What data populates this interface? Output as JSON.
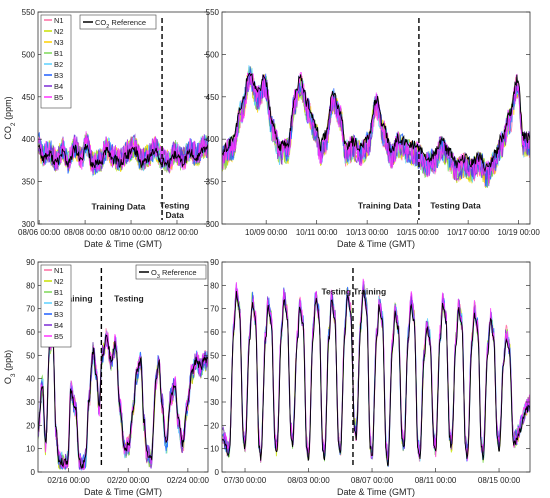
{
  "figure": {
    "panels": 4,
    "colors": {
      "N1": "#ff6aa0",
      "N2": "#c8e000",
      "N3": "#ffd000",
      "B1": "#7ed957",
      "B2": "#5ad0ff",
      "B3": "#1f5fff",
      "B4": "#7a2bd6",
      "B5": "#ff33ff",
      "ref": "#000000"
    }
  },
  "chart_data": [
    {
      "id": "co2-aug",
      "type": "line",
      "ylabel": "CO2 (ppm)",
      "xlabel": "Date & Time (GMT)",
      "ylim": [
        300,
        550
      ],
      "yticks": [
        "300",
        "350",
        "400",
        "450",
        "500",
        "550"
      ],
      "xlim": [
        0,
        7.4
      ],
      "xticks": [
        {
          "x": 0.05,
          "label": "08/06 00:00"
        },
        {
          "x": 2.05,
          "label": "08/08 00:00"
        },
        {
          "x": 4.05,
          "label": "08/10 00:00"
        },
        {
          "x": 6.05,
          "label": "08/12 00:00"
        }
      ],
      "split_x": 5.4,
      "annotations": [
        {
          "text": "Training Data",
          "x": 3.5,
          "y": 317
        },
        {
          "text": "Testing",
          "x": 5.95,
          "y": 318
        },
        {
          "text": "Data",
          "x": 5.95,
          "y": 307
        }
      ],
      "legend": {
        "position": "top-left",
        "entries": [
          "N1",
          "N2",
          "N3",
          "B1",
          "B2",
          "B3",
          "B4",
          "B5"
        ],
        "ref_label": "CO2 Reference"
      },
      "reference": [
        [
          0.0,
          395
        ],
        [
          0.2,
          378
        ],
        [
          0.5,
          382
        ],
        [
          0.8,
          372
        ],
        [
          1.1,
          385
        ],
        [
          1.3,
          370
        ],
        [
          1.6,
          388
        ],
        [
          1.9,
          374
        ],
        [
          2.1,
          392
        ],
        [
          2.4,
          368
        ],
        [
          2.7,
          372
        ],
        [
          3.0,
          386
        ],
        [
          3.3,
          376
        ],
        [
          3.6,
          372
        ],
        [
          3.9,
          382
        ],
        [
          4.2,
          388
        ],
        [
          4.5,
          372
        ],
        [
          4.8,
          378
        ],
        [
          5.1,
          386
        ],
        [
          5.4,
          374
        ],
        [
          5.7,
          370
        ],
        [
          6.0,
          382
        ],
        [
          6.3,
          372
        ],
        [
          6.6,
          384
        ],
        [
          6.9,
          378
        ],
        [
          7.2,
          388
        ]
      ],
      "spread": 22,
      "series_names": [
        "N1",
        "N2",
        "N3",
        "B1",
        "B2",
        "B3",
        "B4",
        "B5"
      ]
    },
    {
      "id": "co2-oct",
      "type": "line",
      "ylabel": "",
      "xlabel": "Date & Time (GMT)",
      "ylim": [
        300,
        550
      ],
      "yticks": [
        "300",
        "350",
        "400",
        "450",
        "500",
        "550"
      ],
      "xlim": [
        0,
        12.2
      ],
      "xticks": [
        {
          "x": 1.75,
          "label": "10/09 00:00"
        },
        {
          "x": 3.75,
          "label": "10/11 00:00"
        },
        {
          "x": 5.75,
          "label": "10/13 00:00"
        },
        {
          "x": 7.75,
          "label": "10/15 00:00"
        },
        {
          "x": 9.75,
          "label": "10/17 00:00"
        },
        {
          "x": 11.75,
          "label": "10/19 00:00"
        }
      ],
      "split_x": 7.8,
      "annotations": [
        {
          "text": "Training Data",
          "x": 6.45,
          "y": 318
        },
        {
          "text": "Testing Data",
          "x": 9.25,
          "y": 318
        }
      ],
      "reference": [
        [
          0.0,
          385
        ],
        [
          0.4,
          398
        ],
        [
          0.8,
          442
        ],
        [
          1.1,
          482
        ],
        [
          1.4,
          455
        ],
        [
          1.7,
          472
        ],
        [
          2.0,
          420
        ],
        [
          2.3,
          392
        ],
        [
          2.6,
          395
        ],
        [
          2.9,
          452
        ],
        [
          3.1,
          472
        ],
        [
          3.4,
          442
        ],
        [
          3.7,
          418
        ],
        [
          3.9,
          392
        ],
        [
          4.1,
          405
        ],
        [
          4.4,
          455
        ],
        [
          4.7,
          432
        ],
        [
          4.9,
          392
        ],
        [
          5.2,
          398
        ],
        [
          5.5,
          392
        ],
        [
          5.8,
          402
        ],
        [
          6.1,
          448
        ],
        [
          6.4,
          415
        ],
        [
          6.7,
          388
        ],
        [
          7.0,
          402
        ],
        [
          7.3,
          395
        ],
        [
          7.6,
          392
        ],
        [
          7.8,
          388
        ],
        [
          8.1,
          378
        ],
        [
          8.4,
          382
        ],
        [
          8.7,
          398
        ],
        [
          9.0,
          385
        ],
        [
          9.3,
          372
        ],
        [
          9.6,
          378
        ],
        [
          9.9,
          372
        ],
        [
          10.2,
          380
        ],
        [
          10.5,
          366
        ],
        [
          10.8,
          382
        ],
        [
          11.1,
          402
        ],
        [
          11.4,
          430
        ],
        [
          11.7,
          472
        ],
        [
          11.95,
          402
        ]
      ],
      "spread": 24,
      "series_names": [
        "N1",
        "N2",
        "N3",
        "B1",
        "B2",
        "B3",
        "B4",
        "B5"
      ]
    },
    {
      "id": "o3-feb",
      "type": "line",
      "ylabel": "O3 (ppb)",
      "xlabel": "Date & Time (GMT)",
      "ylim": [
        0,
        90
      ],
      "yticks": [
        "0",
        "10",
        "20",
        "30",
        "40",
        "50",
        "60",
        "70",
        "80",
        "90"
      ],
      "xlim": [
        0,
        11.4
      ],
      "xticks": [
        {
          "x": 2.05,
          "label": "02/16 00:00"
        },
        {
          "x": 6.05,
          "label": "02/20 00:00"
        },
        {
          "x": 10.05,
          "label": "02/24 00:00"
        }
      ],
      "split_x": 4.25,
      "annotations": [
        {
          "text": "Training",
          "x": 2.55,
          "y": 73
        },
        {
          "text": "Testing",
          "x": 6.1,
          "y": 73
        }
      ],
      "legend": {
        "position": "top-left",
        "entries": [
          "N1",
          "N2",
          "B1",
          "B2",
          "B3",
          "B4",
          "B5"
        ],
        "ref_label": "O3 Reference"
      },
      "reference": [
        [
          0.0,
          18
        ],
        [
          0.3,
          38
        ],
        [
          0.5,
          12
        ],
        [
          0.8,
          55
        ],
        [
          1.0,
          58
        ],
        [
          1.2,
          18
        ],
        [
          1.4,
          5
        ],
        [
          1.7,
          4
        ],
        [
          2.0,
          5
        ],
        [
          2.2,
          35
        ],
        [
          2.5,
          28
        ],
        [
          2.8,
          4
        ],
        [
          3.0,
          3
        ],
        [
          3.2,
          6
        ],
        [
          3.4,
          30
        ],
        [
          3.7,
          52
        ],
        [
          3.9,
          42
        ],
        [
          4.1,
          28
        ],
        [
          4.3,
          50
        ],
        [
          4.6,
          58
        ],
        [
          4.9,
          48
        ],
        [
          5.2,
          55
        ],
        [
          5.5,
          28
        ],
        [
          5.8,
          10
        ],
        [
          6.1,
          12
        ],
        [
          6.4,
          28
        ],
        [
          6.6,
          42
        ],
        [
          6.9,
          48
        ],
        [
          7.1,
          22
        ],
        [
          7.3,
          8
        ],
        [
          7.6,
          6
        ],
        [
          7.9,
          38
        ],
        [
          8.1,
          48
        ],
        [
          8.3,
          30
        ],
        [
          8.6,
          12
        ],
        [
          8.9,
          32
        ],
        [
          9.2,
          38
        ],
        [
          9.4,
          22
        ],
        [
          9.7,
          12
        ],
        [
          10.0,
          28
        ],
        [
          10.3,
          42
        ],
        [
          10.6,
          48
        ],
        [
          10.9,
          45
        ],
        [
          11.2,
          48
        ]
      ],
      "spread": 7,
      "series_names": [
        "N1",
        "N2",
        "B1",
        "B2",
        "B3",
        "B4",
        "B5"
      ]
    },
    {
      "id": "o3-jul",
      "type": "line",
      "ylabel": "",
      "xlabel": "Date & Time (GMT)",
      "ylim": [
        0,
        90
      ],
      "yticks": [
        "0",
        "10",
        "20",
        "30",
        "40",
        "50",
        "60",
        "70",
        "80",
        "90"
      ],
      "xlim": [
        0,
        19.4
      ],
      "xticks": [
        {
          "x": 1.45,
          "label": "07/30 00:00"
        },
        {
          "x": 5.45,
          "label": "08/03 00:00"
        },
        {
          "x": 9.45,
          "label": "08/07 00:00"
        },
        {
          "x": 13.45,
          "label": "08/11 00:00"
        },
        {
          "x": 17.45,
          "label": "08/15 00:00"
        }
      ],
      "split_x": 8.25,
      "annotations": [
        {
          "text": "Testing",
          "x": 7.2,
          "y": 76
        },
        {
          "text": "Training",
          "x": 9.3,
          "y": 76
        }
      ],
      "peaks": [
        76,
        72,
        71,
        74,
        70,
        74,
        73,
        75,
        78,
        71,
        68,
        72,
        62,
        72,
        70,
        68,
        65,
        58
      ],
      "troughs": [
        8,
        10,
        6,
        8,
        12,
        5,
        6,
        8,
        15,
        6,
        4,
        10,
        6,
        8,
        10,
        6,
        6,
        10
      ],
      "spread": 6,
      "series_names": [
        "N1",
        "N2",
        "B1",
        "B2",
        "B3",
        "B4",
        "B5"
      ]
    }
  ]
}
